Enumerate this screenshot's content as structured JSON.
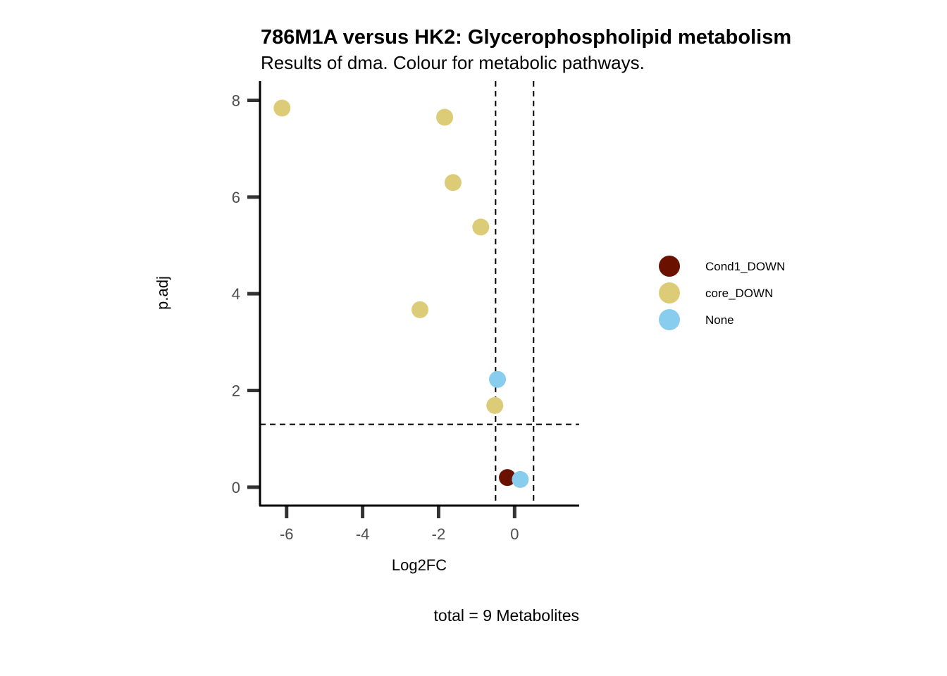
{
  "chart_data": {
    "type": "scatter",
    "title": "786M1A versus HK2: Glycerophospholipid metabolism",
    "subtitle": "Results of dma. Colour for metabolic pathways.",
    "xlabel": "Log2FC",
    "ylabel": "p.adj",
    "caption": "total = 9 Metabolites",
    "xlim": [
      -6.7,
      1.7
    ],
    "ylim": [
      -0.38,
      8.4
    ],
    "xticks": [
      -6,
      -4,
      -2,
      0
    ],
    "yticks": [
      0,
      2,
      4,
      6,
      8
    ],
    "grid": false,
    "legend_position": "right",
    "thresholds": {
      "vlines": [
        -0.5,
        0.5
      ],
      "hline": 1.3
    },
    "series": [
      {
        "name": "Cond1_DOWN",
        "color": "#6B1100",
        "points": [
          [
            -0.19,
            0.2
          ]
        ]
      },
      {
        "name": "core_DOWN",
        "color": "#DDCC77",
        "points": [
          [
            -6.12,
            7.84
          ],
          [
            -1.84,
            7.65
          ],
          [
            -1.62,
            6.3
          ],
          [
            -0.89,
            5.38
          ],
          [
            -2.49,
            3.67
          ],
          [
            -0.52,
            1.69
          ]
        ]
      },
      {
        "name": "None",
        "color": "#88CCEE",
        "points": [
          [
            -0.45,
            2.23
          ],
          [
            0.15,
            0.16
          ]
        ]
      }
    ]
  }
}
